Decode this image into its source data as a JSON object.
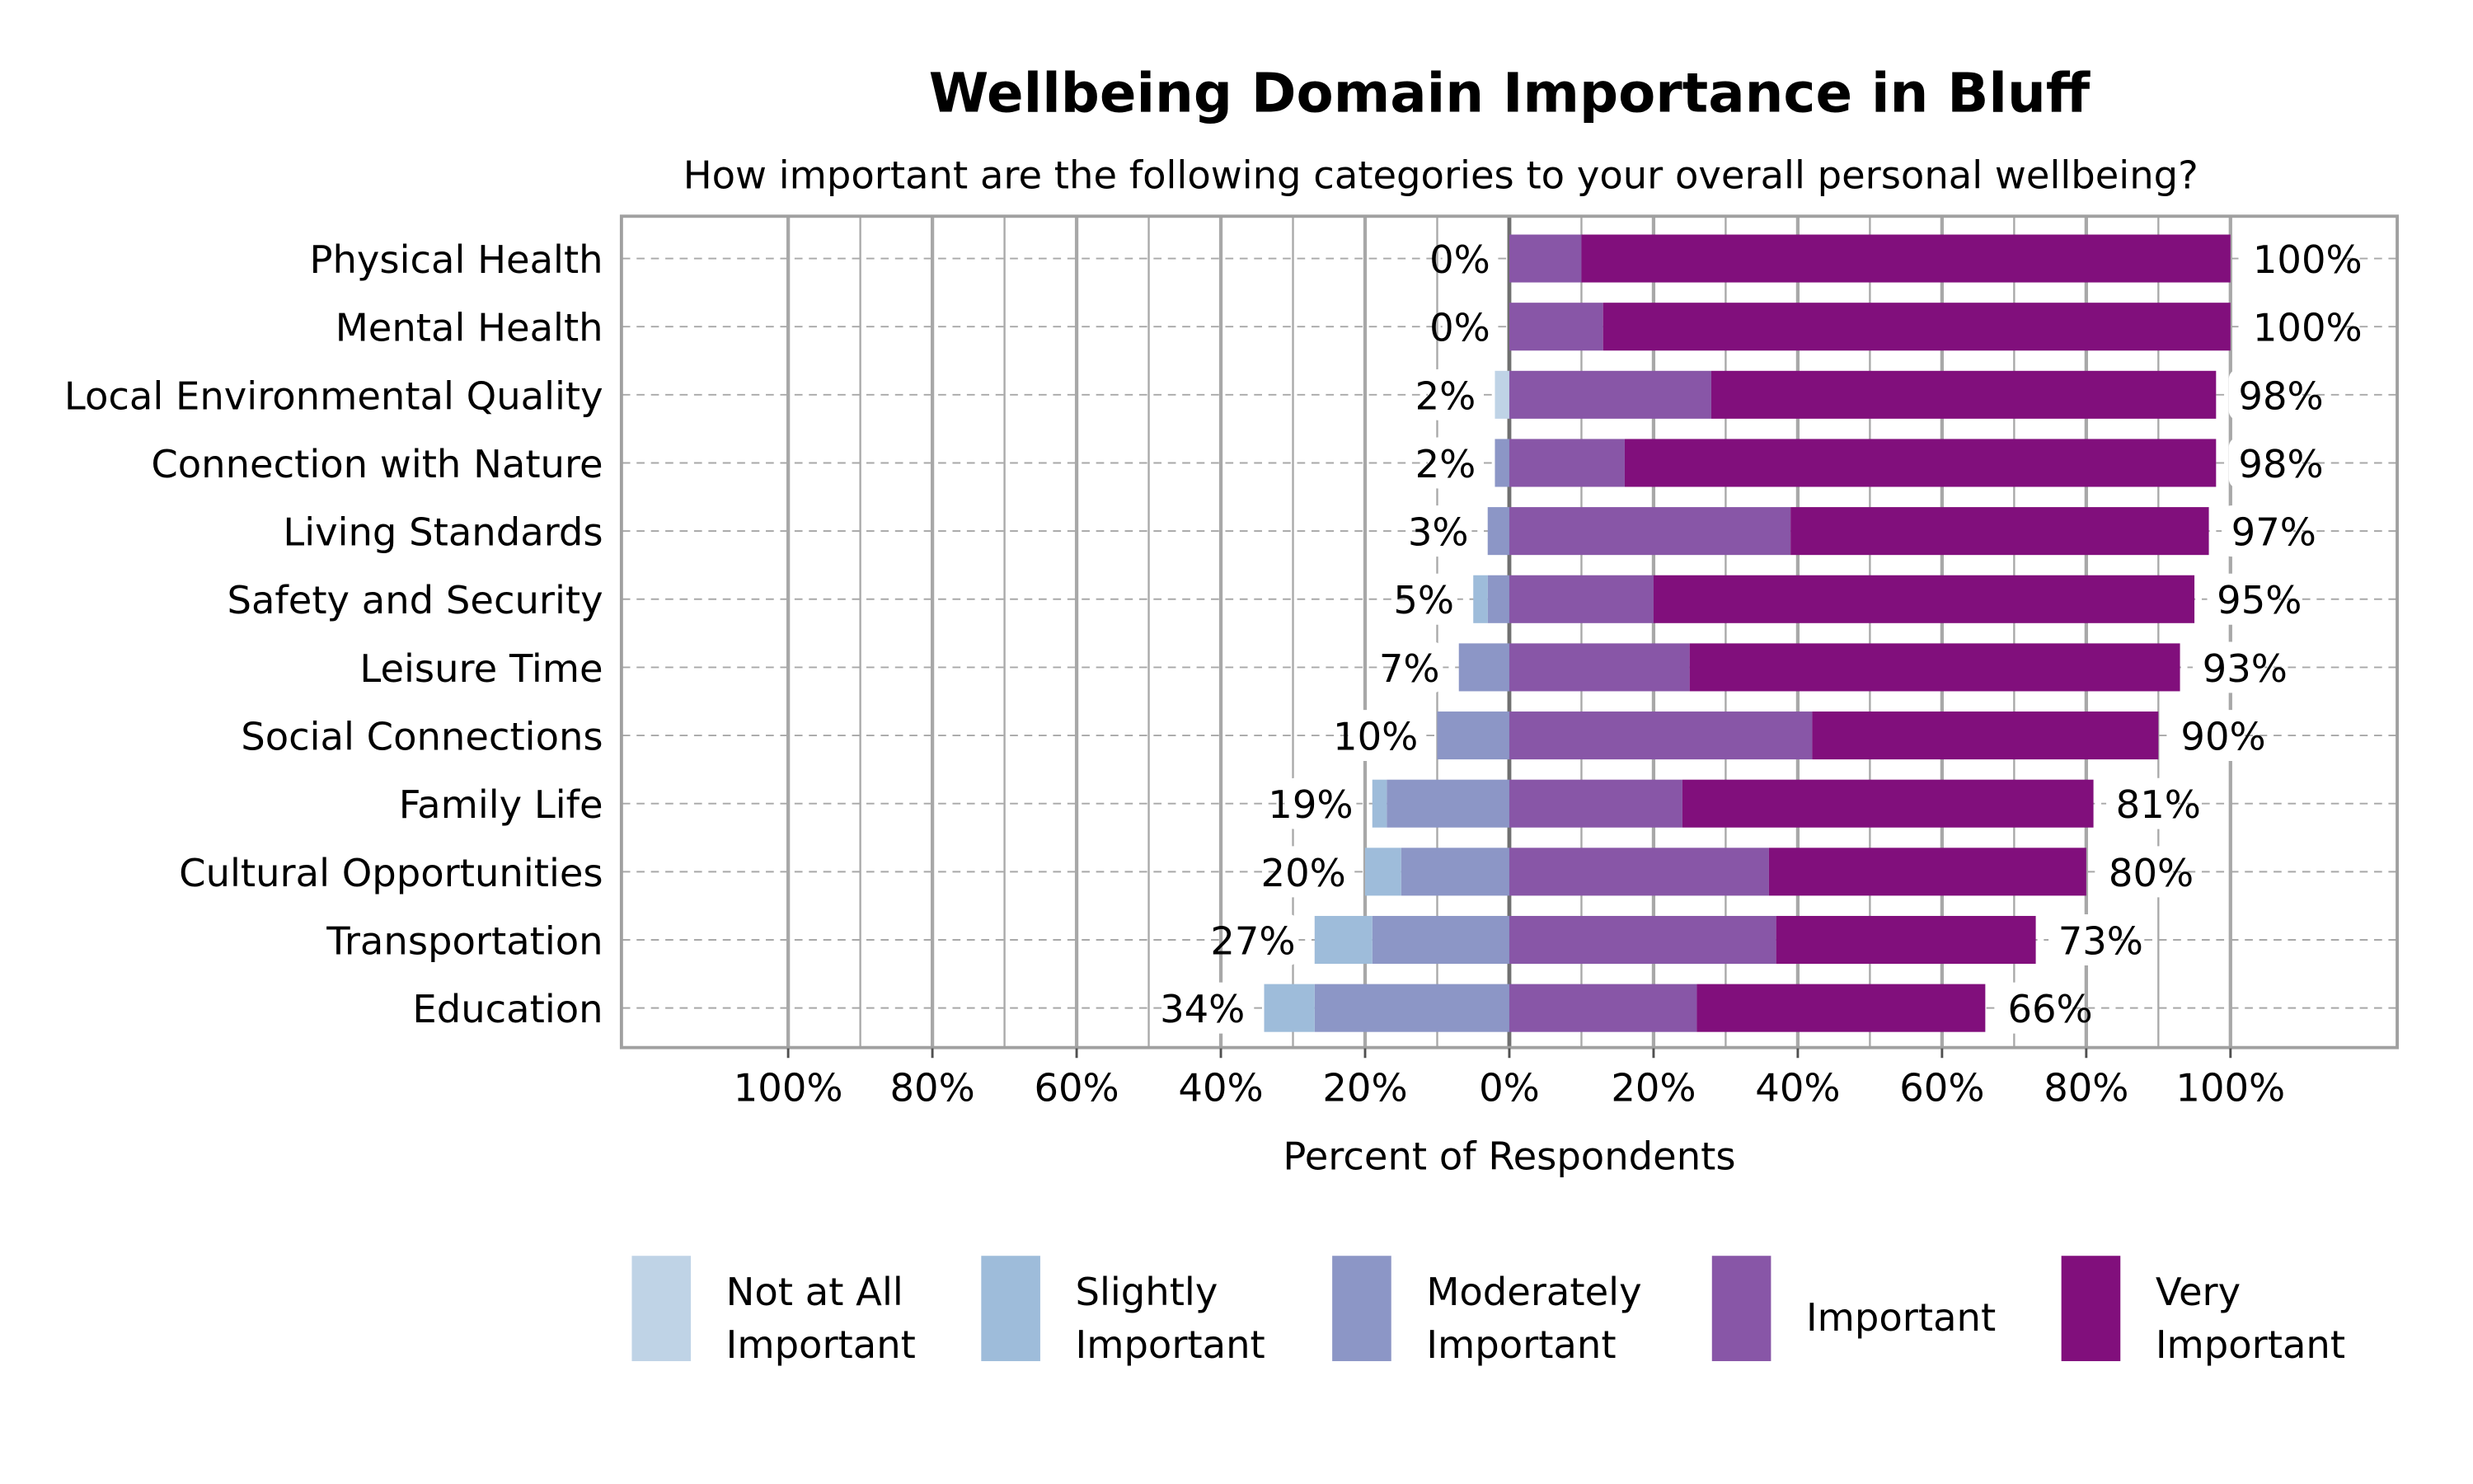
{
  "chart_data": {
    "type": "bar",
    "orientation": "horizontal",
    "stacking": "diverging",
    "title": "Wellbeing Domain Importance in Bluff",
    "subtitle": "How important are the following categories to your overall personal wellbeing?",
    "xlabel": "Percent of Respondents",
    "xlim": [
      -100,
      100
    ],
    "xtick_labels": [
      "100%",
      "80%",
      "60%",
      "40%",
      "20%",
      "0%",
      "20%",
      "40%",
      "60%",
      "80%",
      "100%"
    ],
    "grid": true,
    "legend_position": "bottom",
    "categories": [
      "Physical Health",
      "Mental Health",
      "Local Environmental Quality",
      "Connection with Nature",
      "Living Standards",
      "Safety and Security",
      "Leisure Time",
      "Social Connections",
      "Family Life",
      "Cultural Opportunities",
      "Transportation",
      "Education"
    ],
    "series": [
      {
        "name": "Not at All Important",
        "side": "negative",
        "color": "#bfd3e6",
        "values": [
          0,
          0,
          2,
          0,
          0,
          0,
          0,
          0,
          0,
          0,
          0,
          0
        ]
      },
      {
        "name": "Slightly Important",
        "side": "negative",
        "color": "#9ebcda",
        "values": [
          0,
          0,
          0,
          0,
          0,
          2,
          0,
          0,
          2,
          5,
          8,
          7
        ]
      },
      {
        "name": "Moderately Important",
        "side": "negative",
        "color": "#8c96c6",
        "values": [
          0,
          0,
          0,
          2,
          3,
          3,
          7,
          10,
          17,
          15,
          19,
          27
        ]
      },
      {
        "name": "Important",
        "side": "positive",
        "color": "#8856a7",
        "values": [
          10,
          13,
          28,
          16,
          39,
          20,
          25,
          42,
          24,
          36,
          37,
          26
        ]
      },
      {
        "name": "Very Important",
        "side": "positive",
        "color": "#810f7c",
        "values": [
          90,
          87,
          70,
          82,
          58,
          75,
          68,
          48,
          57,
          44,
          36,
          40
        ]
      }
    ],
    "left_totals": [
      "0%",
      "0%",
      "2%",
      "2%",
      "3%",
      "5%",
      "7%",
      "10%",
      "19%",
      "20%",
      "27%",
      "34%"
    ],
    "right_totals": [
      "100%",
      "100%",
      "98%",
      "98%",
      "97%",
      "95%",
      "93%",
      "90%",
      "81%",
      "80%",
      "73%",
      "66%"
    ],
    "legend_labels": [
      [
        "Not at All",
        "Important"
      ],
      [
        "Slightly",
        "Important"
      ],
      [
        "Moderately",
        "Important"
      ],
      [
        "Important"
      ],
      [
        "Very",
        "Important"
      ]
    ]
  }
}
